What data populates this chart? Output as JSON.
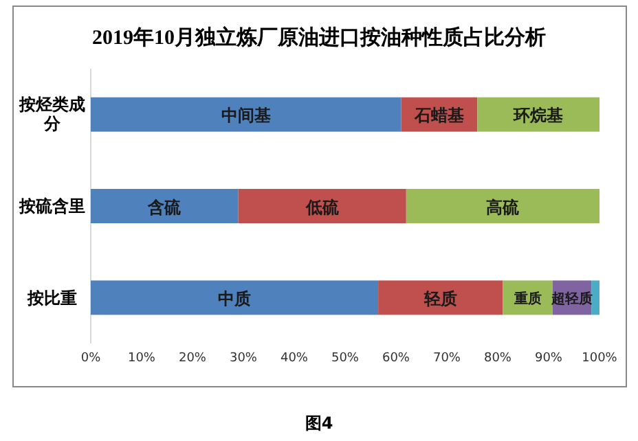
{
  "chart_data": {
    "type": "bar",
    "orientation": "horizontal",
    "stacked": true,
    "title": "2019年10月独立炼厂原油进口按油种性质占比分析",
    "categories": [
      "按烃类成分",
      "按硫含里",
      "按比重"
    ],
    "xlim": [
      0,
      100
    ],
    "xticks": [
      {
        "value": 0,
        "label": "0%"
      },
      {
        "value": 10,
        "label": "10%"
      },
      {
        "value": 20,
        "label": "20%"
      },
      {
        "value": 30,
        "label": "30%"
      },
      {
        "value": 40,
        "label": "40%"
      },
      {
        "value": 50,
        "label": "50%"
      },
      {
        "value": 60,
        "label": "60%"
      },
      {
        "value": 70,
        "label": "70%"
      },
      {
        "value": 80,
        "label": "80%"
      },
      {
        "value": 90,
        "label": "90%"
      },
      {
        "value": 100,
        "label": "100%"
      }
    ],
    "grid": false,
    "annotations": [
      "图4"
    ],
    "series": [
      {
        "name": "中间基",
        "color": "#4f81bd",
        "values": [
          61,
          null,
          null
        ]
      },
      {
        "name": "石蜡基",
        "color": "#c0504d",
        "values": [
          15,
          null,
          null
        ]
      },
      {
        "name": "环烷基",
        "color": "#9bbb59",
        "values": [
          24,
          null,
          null
        ]
      },
      {
        "name": "含硫",
        "color": "#4f81bd",
        "values": [
          null,
          29,
          null
        ]
      },
      {
        "name": "低硫",
        "color": "#c0504d",
        "values": [
          null,
          33,
          null
        ]
      },
      {
        "name": "高硫",
        "color": "#9bbb59",
        "values": [
          null,
          38,
          null
        ]
      },
      {
        "name": "中质",
        "color": "#4f81bd",
        "values": [
          null,
          null,
          56.5
        ]
      },
      {
        "name": "轻质",
        "color": "#c0504d",
        "values": [
          null,
          null,
          24.5
        ]
      },
      {
        "name": "重质",
        "color": "#9bbb59",
        "values": [
          null,
          null,
          9.8
        ]
      },
      {
        "name": "超轻质",
        "color": "#8064a2",
        "values": [
          null,
          null,
          7.6
        ]
      },
      {
        "color": "#4bacc6",
        "values": [
          null,
          null,
          1.6
        ]
      }
    ]
  }
}
